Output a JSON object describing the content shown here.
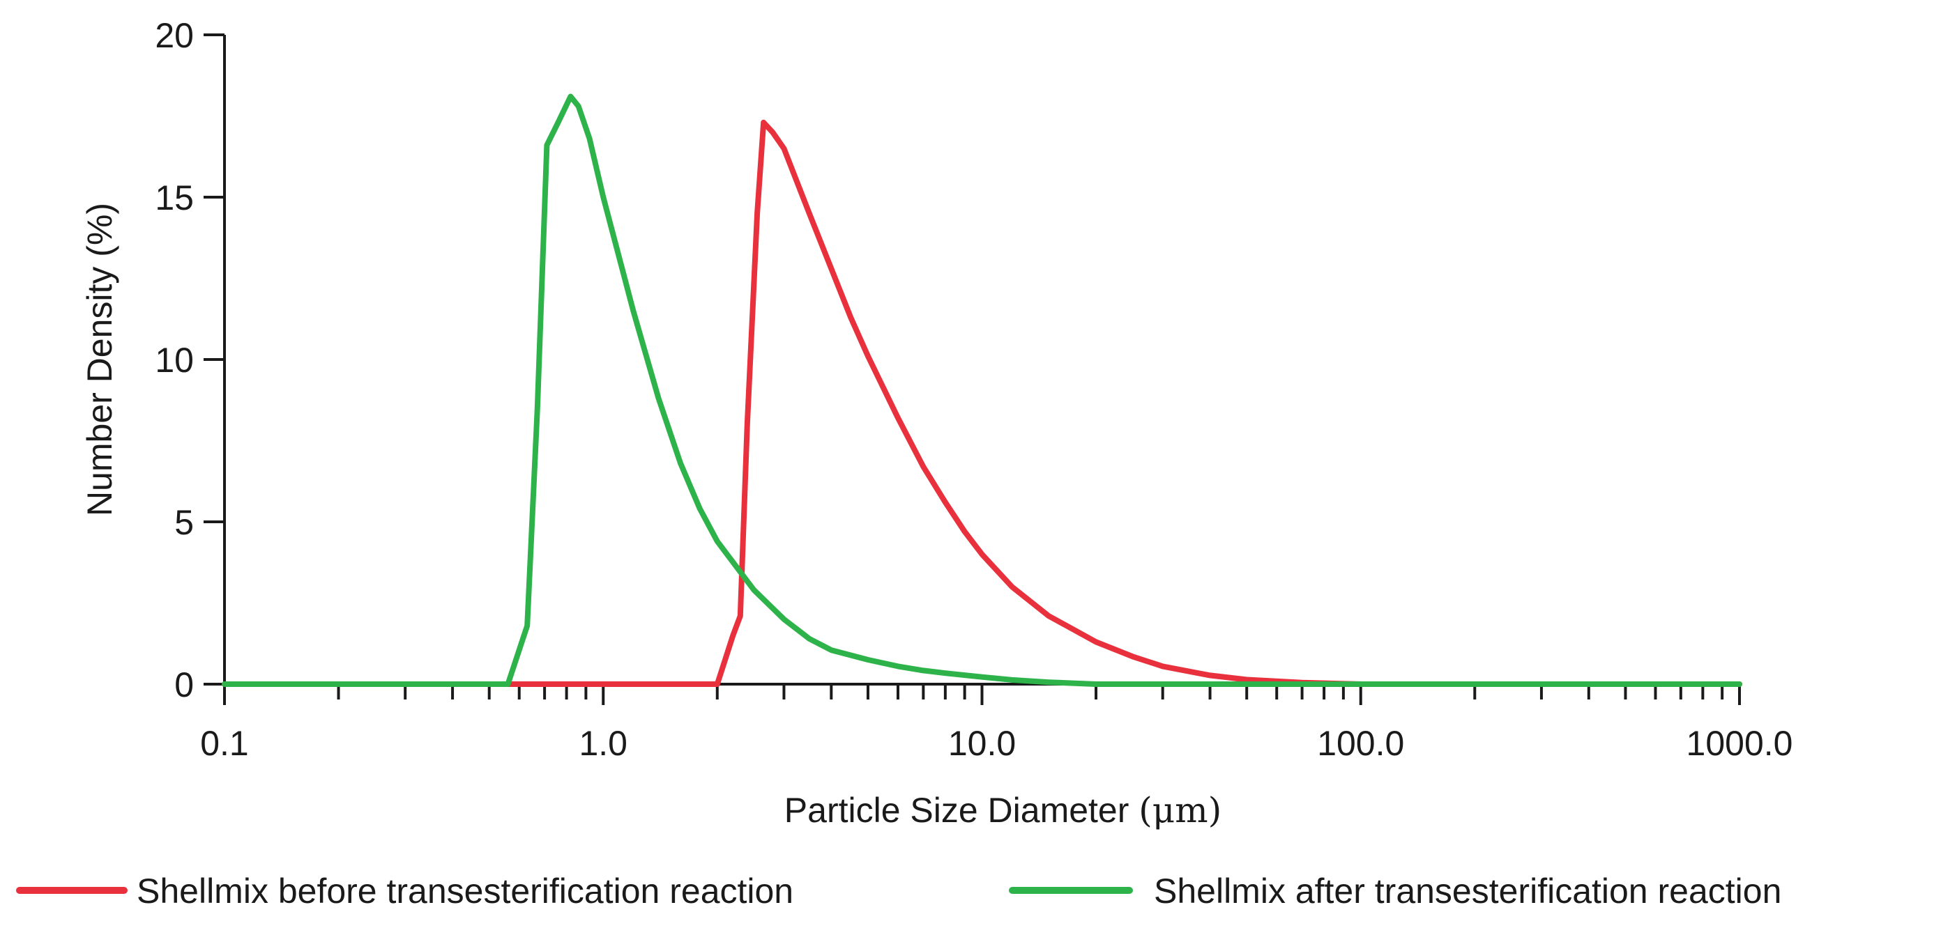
{
  "chart_data": {
    "type": "line",
    "title": "",
    "xlabel": "Particle Size Diameter",
    "xlabel_unit": "(μm)",
    "ylabel": "Number Density (%)",
    "x_scale": "log",
    "xlim": [
      0.1,
      1000
    ],
    "ylim": [
      0,
      20
    ],
    "x_ticks": [
      0.1,
      1,
      10,
      100,
      1000
    ],
    "x_tick_labels": [
      "0.1",
      "1.0",
      "10.0",
      "100.0",
      "1000.0"
    ],
    "y_ticks": [
      0,
      5,
      10,
      15,
      20
    ],
    "y_tick_labels": [
      "0",
      "5",
      "10",
      "15",
      "20"
    ],
    "grid": false,
    "legend_position": "bottom",
    "series": [
      {
        "name": "Shellmix before transesterification reaction",
        "color": "#e8313c",
        "points": [
          [
            0.1,
            0
          ],
          [
            2.0,
            0
          ],
          [
            2.2,
            1.5
          ],
          [
            2.3,
            2.1
          ],
          [
            2.4,
            8.0
          ],
          [
            2.55,
            14.5
          ],
          [
            2.65,
            17.3
          ],
          [
            2.8,
            17.0
          ],
          [
            3.0,
            16.5
          ],
          [
            3.5,
            14.5
          ],
          [
            4.0,
            12.8
          ],
          [
            4.5,
            11.3
          ],
          [
            5.0,
            10.1
          ],
          [
            6.0,
            8.2
          ],
          [
            7.0,
            6.7
          ],
          [
            8.0,
            5.6
          ],
          [
            9.0,
            4.7
          ],
          [
            10.0,
            4.0
          ],
          [
            12.0,
            3.0
          ],
          [
            15.0,
            2.1
          ],
          [
            20.0,
            1.3
          ],
          [
            25.0,
            0.85
          ],
          [
            30.0,
            0.55
          ],
          [
            40.0,
            0.27
          ],
          [
            50.0,
            0.14
          ],
          [
            70.0,
            0.05
          ],
          [
            100.0,
            0
          ],
          [
            1000,
            0
          ]
        ]
      },
      {
        "name": "Shellmix after transesterification reaction",
        "color": "#2db34a",
        "points": [
          [
            0.1,
            0
          ],
          [
            0.56,
            0
          ],
          [
            0.63,
            1.8
          ],
          [
            0.67,
            8.5
          ],
          [
            0.71,
            16.6
          ],
          [
            0.76,
            17.3
          ],
          [
            0.82,
            18.1
          ],
          [
            0.86,
            17.8
          ],
          [
            0.92,
            16.8
          ],
          [
            1.0,
            15.0
          ],
          [
            1.2,
            11.5
          ],
          [
            1.4,
            8.8
          ],
          [
            1.6,
            6.8
          ],
          [
            1.8,
            5.4
          ],
          [
            2.0,
            4.4
          ],
          [
            2.5,
            2.9
          ],
          [
            3.0,
            2.0
          ],
          [
            3.5,
            1.4
          ],
          [
            4.0,
            1.05
          ],
          [
            5.0,
            0.75
          ],
          [
            6.0,
            0.55
          ],
          [
            7.0,
            0.42
          ],
          [
            8.0,
            0.34
          ],
          [
            10.0,
            0.22
          ],
          [
            12.0,
            0.13
          ],
          [
            15.0,
            0.06
          ],
          [
            20.0,
            0
          ],
          [
            1000,
            0
          ]
        ]
      }
    ]
  }
}
